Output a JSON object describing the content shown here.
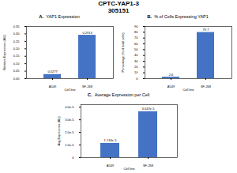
{
  "title": "CPTC-YAP1-3",
  "subtitle": "305151",
  "chart_data": [
    {
      "type": "bar",
      "title": "YAP1 Expression",
      "annotations": [
        "A."
      ],
      "xlabel": "Cell line",
      "ylabel": "Relative Expression (AU)",
      "categories": [
        "A549",
        "SF-268"
      ],
      "values": [
        0.0277,
        0.2913
      ],
      "data_labels": true,
      "color": "#4472c4",
      "grid": false,
      "ylim": [
        0,
        0.35
      ],
      "yticks": [
        {
          "value": 0,
          "label": "0.00"
        },
        0.05,
        {
          "value": 0.1,
          "label": "0.10"
        },
        0.15,
        {
          "value": 0.2,
          "label": "0.20"
        },
        0.25,
        {
          "value": 0.3,
          "label": "0.30"
        },
        0.35
      ]
    },
    {
      "type": "bar",
      "title": "% of Cells Expressing YAP1",
      "annotations": [
        "B."
      ],
      "xlabel": "Cell line",
      "ylabel": "Percentage (% of total cells)",
      "categories": [
        "A549",
        "SF-268"
      ],
      "values": [
        2.6,
        79.7
      ],
      "data_labels": true,
      "color": "#4472c4",
      "grid": false,
      "ylim": [
        0,
        90
      ],
      "yticks": [
        0,
        10,
        20,
        30,
        40,
        50,
        60,
        70,
        80,
        90
      ]
    },
    {
      "type": "bar",
      "title": "Average Expression per Cell",
      "annotations": [
        "C."
      ],
      "xlabel": "Cell line",
      "ylabel": "Avg Expression (AU)",
      "categories": [
        "A549",
        "SF-268"
      ],
      "values": [
        1.134e-05,
        3.647e-05
      ],
      "value_labels": [
        "1.134e-5",
        "3.647e-5"
      ],
      "data_labels": true,
      "color": "#4472c4",
      "grid": false,
      "ylim": [
        0,
        4.2e-05
      ],
      "yticks": [
        0,
        {
          "value": 1e-05,
          "label": "1.0e-5"
        },
        {
          "value": 2e-05,
          "label": "2.0e-5"
        },
        {
          "value": 3e-05,
          "label": "3.0e-5"
        },
        {
          "value": 4e-05,
          "label": "4.0e-5"
        }
      ]
    }
  ]
}
